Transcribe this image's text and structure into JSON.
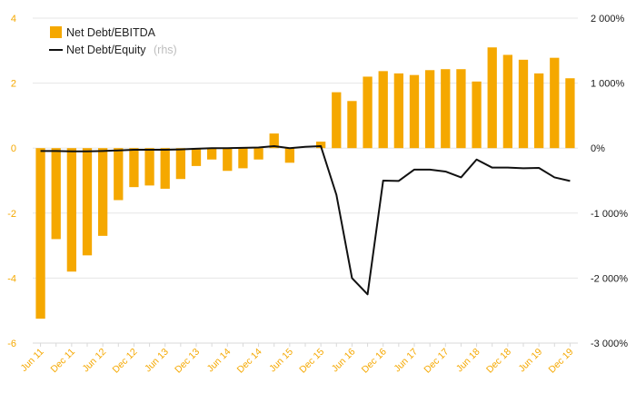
{
  "chart_data": {
    "type": "bar",
    "colors": {
      "bar": "#f5a800",
      "line": "#111111",
      "grid": "#e6e6e6",
      "left_ticks": "#f5a800",
      "right_ticks": "#1a1a1a"
    },
    "legend": {
      "placement": "top-left",
      "bar_label": "Net Debt/EBITDA",
      "line_label": "Net Debt/Equity",
      "line_label_suffix": "(rhs)"
    },
    "left_axis": {
      "ylim": [
        -6,
        4
      ],
      "ticks": [
        "4",
        "2",
        "0",
        "-2",
        "-4",
        "-6"
      ]
    },
    "right_axis": {
      "ylim": [
        -3000,
        2000
      ],
      "ticks": [
        "2 000%",
        "1 000%",
        "0%",
        "-1 000%",
        "-2 000%",
        "-3 000%"
      ]
    },
    "x_ticks": [
      "Jun 11",
      "Dec 11",
      "Jun 12",
      "Dec 12",
      "Jun 13",
      "Dec 13",
      "Jun 14",
      "Dec 14",
      "Jun 15",
      "Dec 15",
      "Jun 16",
      "Dec 16",
      "Jun 17",
      "Dec 17",
      "Jun 18",
      "Dec 18",
      "Jun 19",
      "Dec 19"
    ],
    "categories": [
      "Jun 11",
      "Sep 11",
      "Dec 11",
      "Mar 12",
      "Jun 12",
      "Sep 12",
      "Dec 12",
      "Mar 13",
      "Jun 13",
      "Sep 13",
      "Dec 13",
      "Mar 14",
      "Jun 14",
      "Sep 14",
      "Dec 14",
      "Mar 15",
      "Jun 15",
      "Sep 15",
      "Dec 15",
      "Mar 16",
      "Jun 16",
      "Sep 16",
      "Dec 16",
      "Mar 17",
      "Jun 17",
      "Sep 17",
      "Dec 17",
      "Mar 18",
      "Jun 18",
      "Sep 18",
      "Dec 18",
      "Mar 19",
      "Jun 19",
      "Sep 19",
      "Dec 19"
    ],
    "series": [
      {
        "name": "Net Debt/EBITDA",
        "kind": "bar",
        "axis": "left",
        "values": [
          -5.25,
          -2.8,
          -3.8,
          -3.3,
          -2.7,
          -1.6,
          -1.2,
          -1.15,
          -1.25,
          -0.95,
          -0.55,
          -0.35,
          -0.7,
          -0.62,
          -0.35,
          0.45,
          -0.45,
          null,
          0.2,
          1.72,
          1.45,
          2.2,
          2.37,
          2.3,
          2.25,
          2.4,
          2.43,
          2.43,
          2.05,
          3.1,
          2.87,
          2.72,
          2.3,
          2.78,
          2.15
        ]
      },
      {
        "name": "Net Debt/Equity",
        "kind": "line",
        "axis": "right",
        "values": [
          -45,
          -45,
          -50,
          -50,
          -45,
          -35,
          -25,
          -25,
          -25,
          -20,
          -10,
          0,
          0,
          5,
          10,
          30,
          0,
          20,
          30,
          -720,
          -2000,
          -2250,
          -500,
          -505,
          -330,
          -330,
          -360,
          -450,
          -175,
          -300,
          -300,
          -310,
          -305,
          -450,
          -505
        ]
      }
    ]
  }
}
